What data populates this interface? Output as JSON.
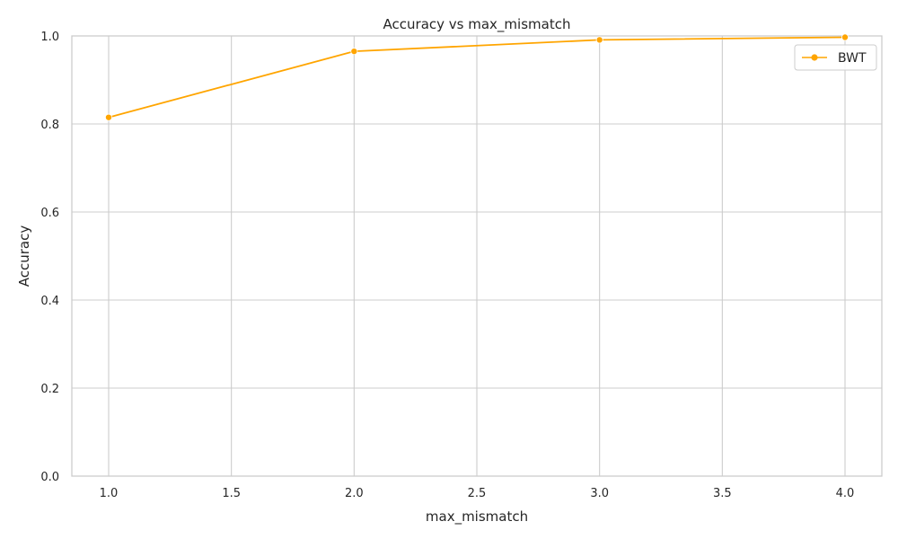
{
  "chart_data": {
    "type": "line",
    "title": "Accuracy vs max_mismatch",
    "xlabel": "max_mismatch",
    "ylabel": "Accuracy",
    "xlim": [
      0.85,
      4.15
    ],
    "ylim": [
      0,
      1
    ],
    "xticks": [
      "1.0",
      "1.5",
      "2.0",
      "2.5",
      "3.0",
      "3.5",
      "4.0"
    ],
    "yticks": [
      "0.0",
      "0.2",
      "0.4",
      "0.6",
      "0.8",
      "1.0"
    ],
    "grid": true,
    "legend_position": "top-right",
    "series": [
      {
        "name": "BWT",
        "color": "#ffa500",
        "marker": "circle",
        "x": [
          1,
          2,
          3,
          4
        ],
        "y": [
          0.815,
          0.965,
          0.991,
          0.997
        ]
      }
    ]
  }
}
